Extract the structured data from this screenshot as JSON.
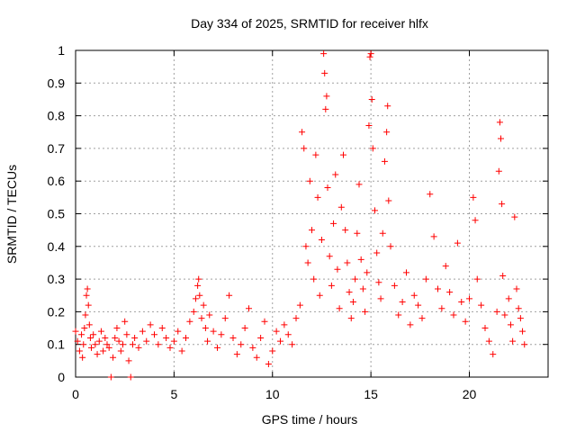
{
  "chart_data": {
    "type": "scatter",
    "title": "Day 334 of 2025, SRMTID for receiver hlfx",
    "xlabel": "GPS time / hours",
    "ylabel": "SRMTID / TECUs",
    "xlim": [
      0,
      24
    ],
    "ylim": [
      0,
      1
    ],
    "xticks": [
      0,
      5,
      10,
      15,
      20
    ],
    "yticks": [
      0,
      0.1,
      0.2,
      0.3,
      0.4,
      0.5,
      0.6,
      0.7,
      0.8,
      0.9,
      1
    ],
    "xtick_labels": [
      "0",
      "5",
      "10",
      "15",
      "20"
    ],
    "ytick_labels": [
      "0",
      "0.1",
      "0.2",
      "0.3",
      "0.4",
      "0.5",
      "0.6",
      "0.7",
      "0.8",
      "0.9",
      "1"
    ],
    "grid": true,
    "marker": "+",
    "marker_color": "#ff0000",
    "series": [
      {
        "name": "SRMTID",
        "points": [
          [
            0.0,
            0.14
          ],
          [
            0.1,
            0.11
          ],
          [
            0.2,
            0.08
          ],
          [
            0.3,
            0.13
          ],
          [
            0.35,
            0.06
          ],
          [
            0.4,
            0.1
          ],
          [
            0.45,
            0.15
          ],
          [
            0.5,
            0.19
          ],
          [
            0.55,
            0.25
          ],
          [
            0.6,
            0.27
          ],
          [
            0.65,
            0.22
          ],
          [
            0.7,
            0.16
          ],
          [
            0.75,
            0.12
          ],
          [
            0.8,
            0.09
          ],
          [
            0.9,
            0.13
          ],
          [
            1.0,
            0.1
          ],
          [
            1.1,
            0.07
          ],
          [
            1.2,
            0.11
          ],
          [
            1.3,
            0.14
          ],
          [
            1.4,
            0.08
          ],
          [
            1.5,
            0.12
          ],
          [
            1.6,
            0.1
          ],
          [
            1.7,
            0.09
          ],
          [
            1.8,
            0.0
          ],
          [
            1.9,
            0.06
          ],
          [
            2.0,
            0.12
          ],
          [
            2.1,
            0.15
          ],
          [
            2.2,
            0.11
          ],
          [
            2.3,
            0.08
          ],
          [
            2.4,
            0.1
          ],
          [
            2.5,
            0.17
          ],
          [
            2.6,
            0.13
          ],
          [
            2.7,
            0.05
          ],
          [
            2.8,
            0.0
          ],
          [
            2.9,
            0.1
          ],
          [
            3.0,
            0.12
          ],
          [
            3.2,
            0.09
          ],
          [
            3.4,
            0.14
          ],
          [
            3.6,
            0.11
          ],
          [
            3.8,
            0.16
          ],
          [
            4.0,
            0.13
          ],
          [
            4.2,
            0.1
          ],
          [
            4.4,
            0.15
          ],
          [
            4.6,
            0.12
          ],
          [
            4.8,
            0.09
          ],
          [
            5.0,
            0.11
          ],
          [
            5.2,
            0.14
          ],
          [
            5.4,
            0.08
          ],
          [
            5.6,
            0.12
          ],
          [
            5.8,
            0.17
          ],
          [
            6.0,
            0.2
          ],
          [
            6.1,
            0.24
          ],
          [
            6.2,
            0.28
          ],
          [
            6.25,
            0.3
          ],
          [
            6.3,
            0.25
          ],
          [
            6.4,
            0.18
          ],
          [
            6.5,
            0.22
          ],
          [
            6.6,
            0.15
          ],
          [
            6.7,
            0.11
          ],
          [
            6.8,
            0.19
          ],
          [
            7.0,
            0.14
          ],
          [
            7.2,
            0.09
          ],
          [
            7.4,
            0.13
          ],
          [
            7.6,
            0.18
          ],
          [
            7.8,
            0.25
          ],
          [
            8.0,
            0.12
          ],
          [
            8.2,
            0.07
          ],
          [
            8.4,
            0.1
          ],
          [
            8.6,
            0.15
          ],
          [
            8.8,
            0.21
          ],
          [
            9.0,
            0.09
          ],
          [
            9.2,
            0.06
          ],
          [
            9.4,
            0.12
          ],
          [
            9.6,
            0.17
          ],
          [
            9.8,
            0.04
          ],
          [
            10.0,
            0.08
          ],
          [
            10.2,
            0.14
          ],
          [
            10.4,
            0.11
          ],
          [
            10.6,
            0.16
          ],
          [
            10.8,
            0.13
          ],
          [
            11.0,
            0.1
          ],
          [
            11.2,
            0.18
          ],
          [
            11.4,
            0.22
          ],
          [
            11.5,
            0.75
          ],
          [
            11.6,
            0.7
          ],
          [
            11.7,
            0.4
          ],
          [
            11.8,
            0.35
          ],
          [
            11.9,
            0.6
          ],
          [
            12.0,
            0.45
          ],
          [
            12.1,
            0.3
          ],
          [
            12.2,
            0.68
          ],
          [
            12.3,
            0.55
          ],
          [
            12.4,
            0.25
          ],
          [
            12.5,
            0.42
          ],
          [
            12.6,
            0.99
          ],
          [
            12.65,
            0.93
          ],
          [
            12.7,
            0.82
          ],
          [
            12.75,
            0.86
          ],
          [
            12.8,
            0.58
          ],
          [
            12.9,
            0.37
          ],
          [
            13.0,
            0.28
          ],
          [
            13.1,
            0.47
          ],
          [
            13.2,
            0.62
          ],
          [
            13.3,
            0.33
          ],
          [
            13.4,
            0.21
          ],
          [
            13.5,
            0.52
          ],
          [
            13.6,
            0.68
          ],
          [
            13.7,
            0.45
          ],
          [
            13.8,
            0.35
          ],
          [
            13.9,
            0.26
          ],
          [
            14.0,
            0.18
          ],
          [
            14.1,
            0.23
          ],
          [
            14.2,
            0.3
          ],
          [
            14.3,
            0.44
          ],
          [
            14.4,
            0.59
          ],
          [
            14.5,
            0.36
          ],
          [
            14.6,
            0.27
          ],
          [
            14.7,
            0.2
          ],
          [
            14.8,
            0.32
          ],
          [
            14.9,
            0.77
          ],
          [
            14.95,
            0.98
          ],
          [
            15.0,
            0.99
          ],
          [
            15.05,
            0.85
          ],
          [
            15.1,
            0.7
          ],
          [
            15.2,
            0.51
          ],
          [
            15.3,
            0.38
          ],
          [
            15.4,
            0.29
          ],
          [
            15.5,
            0.24
          ],
          [
            15.6,
            0.44
          ],
          [
            15.7,
            0.66
          ],
          [
            15.8,
            0.75
          ],
          [
            15.85,
            0.83
          ],
          [
            15.9,
            0.54
          ],
          [
            16.0,
            0.4
          ],
          [
            16.2,
            0.28
          ],
          [
            16.4,
            0.19
          ],
          [
            16.6,
            0.23
          ],
          [
            16.8,
            0.32
          ],
          [
            17.0,
            0.16
          ],
          [
            17.2,
            0.25
          ],
          [
            17.4,
            0.22
          ],
          [
            17.6,
            0.18
          ],
          [
            17.8,
            0.3
          ],
          [
            18.0,
            0.56
          ],
          [
            18.2,
            0.43
          ],
          [
            18.4,
            0.27
          ],
          [
            18.6,
            0.21
          ],
          [
            18.8,
            0.34
          ],
          [
            19.0,
            0.26
          ],
          [
            19.2,
            0.19
          ],
          [
            19.4,
            0.41
          ],
          [
            19.6,
            0.23
          ],
          [
            19.8,
            0.17
          ],
          [
            20.0,
            0.24
          ],
          [
            20.2,
            0.55
          ],
          [
            20.3,
            0.48
          ],
          [
            20.4,
            0.3
          ],
          [
            20.6,
            0.22
          ],
          [
            20.8,
            0.15
          ],
          [
            21.0,
            0.11
          ],
          [
            21.2,
            0.07
          ],
          [
            21.4,
            0.2
          ],
          [
            21.5,
            0.63
          ],
          [
            21.55,
            0.78
          ],
          [
            21.6,
            0.73
          ],
          [
            21.65,
            0.53
          ],
          [
            21.7,
            0.31
          ],
          [
            21.8,
            0.19
          ],
          [
            22.0,
            0.24
          ],
          [
            22.1,
            0.16
          ],
          [
            22.2,
            0.11
          ],
          [
            22.3,
            0.49
          ],
          [
            22.4,
            0.27
          ],
          [
            22.5,
            0.21
          ],
          [
            22.6,
            0.18
          ],
          [
            22.7,
            0.14
          ],
          [
            22.8,
            0.1
          ]
        ]
      }
    ]
  }
}
